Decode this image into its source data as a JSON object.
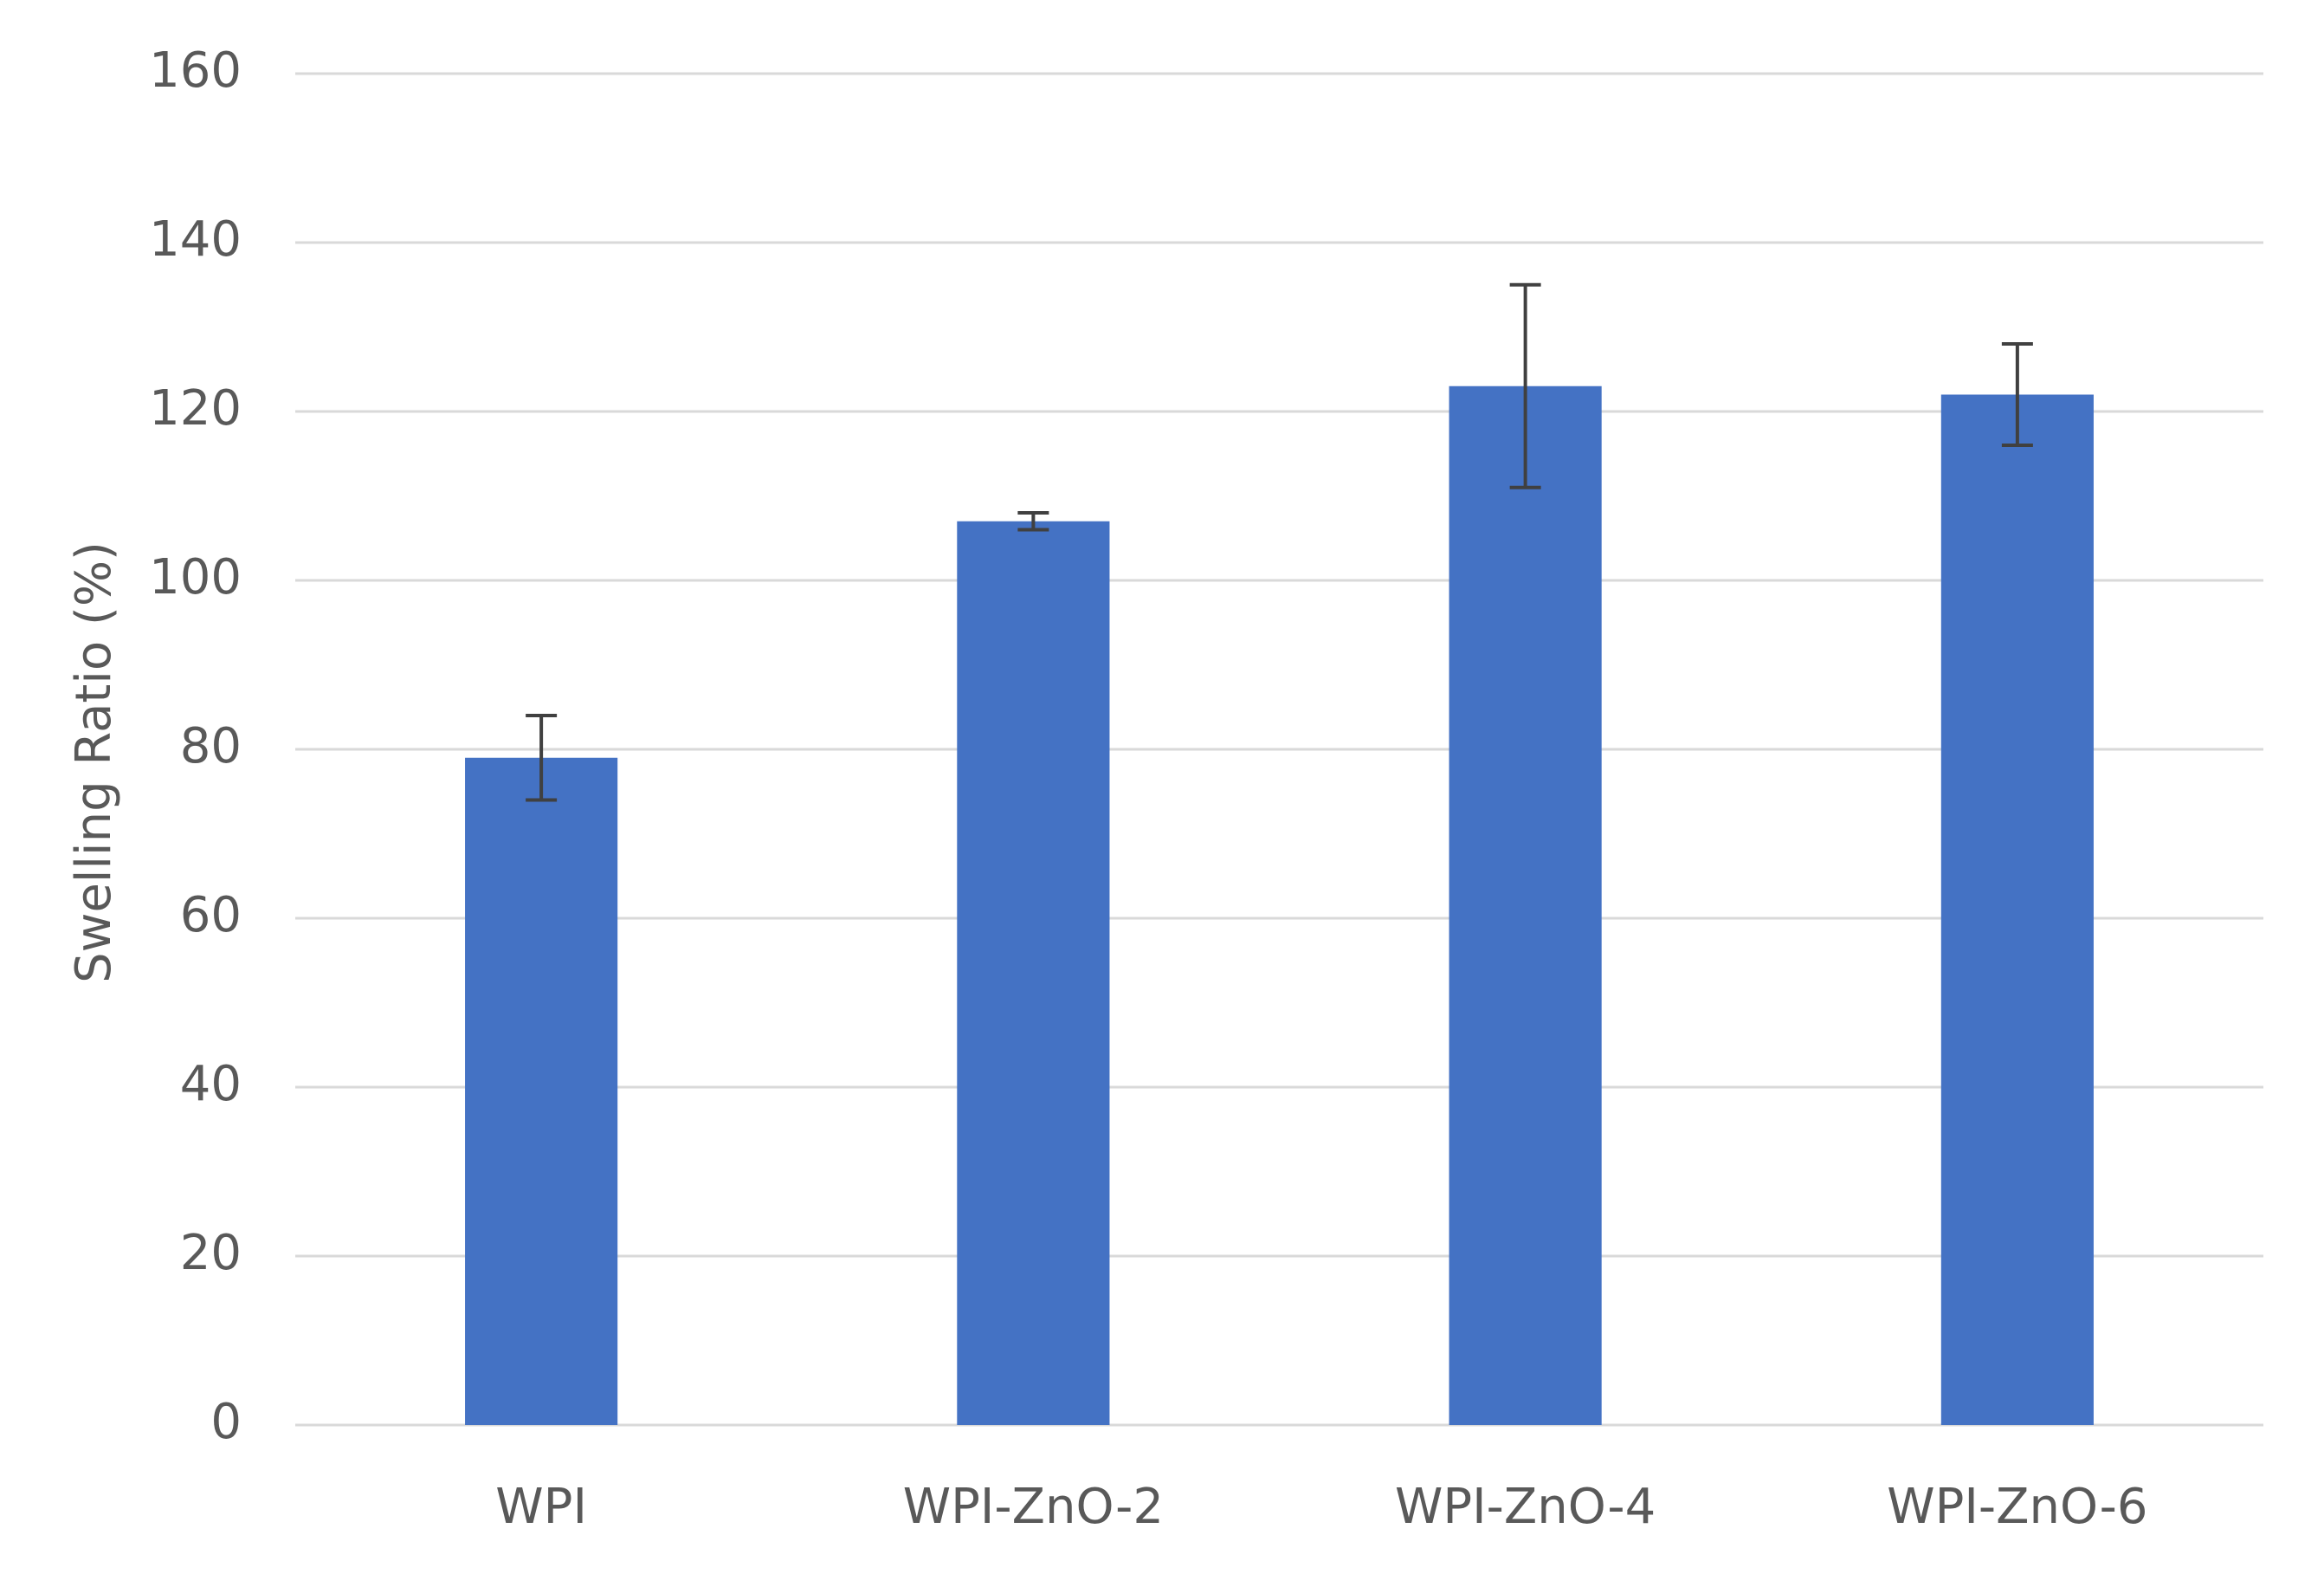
{
  "chart_data": {
    "type": "bar",
    "y_label": "Swelling Ratio (%)",
    "categories": [
      "WPI",
      "WPI-ZnO-2",
      "WPI-ZnO-4",
      "WPI-ZnO-6"
    ],
    "values": [
      79,
      107,
      123,
      122
    ],
    "errors": [
      5,
      1,
      12,
      6
    ],
    "color": "#4472c4",
    "error_color": "#404040",
    "ylim": [
      0,
      160
    ],
    "yticks": [
      0,
      20,
      40,
      60,
      80,
      100,
      120,
      140,
      160
    ],
    "grid": true
  }
}
